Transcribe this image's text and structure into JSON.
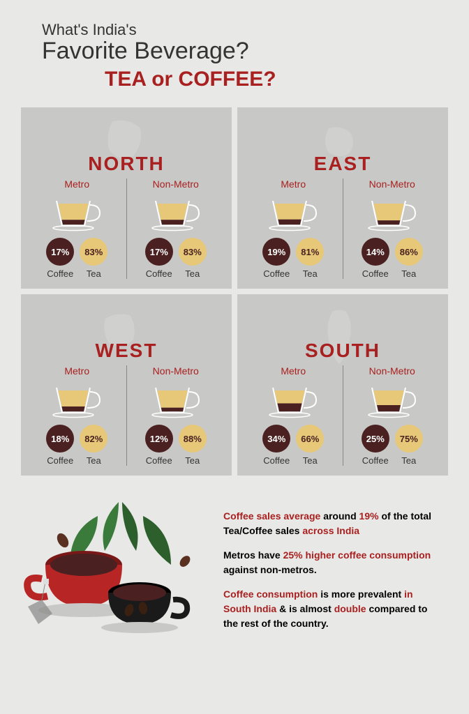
{
  "header": {
    "line1": "What's India's",
    "line2": "Favorite Beverage?",
    "line3": "TEA or COFFEE?"
  },
  "regions": [
    {
      "name": "NORTH",
      "cols": [
        {
          "label": "Metro",
          "coffee": "17%",
          "tea": "83%",
          "coffee_fill": 0.17
        },
        {
          "label": "Non-Metro",
          "coffee": "17%",
          "tea": "83%",
          "coffee_fill": 0.17
        }
      ]
    },
    {
      "name": "EAST",
      "cols": [
        {
          "label": "Metro",
          "coffee": "19%",
          "tea": "81%",
          "coffee_fill": 0.19
        },
        {
          "label": "Non-Metro",
          "coffee": "14%",
          "tea": "86%",
          "coffee_fill": 0.14
        }
      ]
    },
    {
      "name": "WEST",
      "cols": [
        {
          "label": "Metro",
          "coffee": "18%",
          "tea": "82%",
          "coffee_fill": 0.18
        },
        {
          "label": "Non-Metro",
          "coffee": "12%",
          "tea": "88%",
          "coffee_fill": 0.12
        }
      ]
    },
    {
      "name": "SOUTH",
      "cols": [
        {
          "label": "Metro",
          "coffee": "34%",
          "tea": "66%",
          "coffee_fill": 0.34
        },
        {
          "label": "Non-Metro",
          "coffee": "25%",
          "tea": "75%",
          "coffee_fill": 0.25
        }
      ]
    }
  ],
  "labels": {
    "coffee": "Coffee",
    "tea": "Tea"
  },
  "colors": {
    "coffee": "#4a2020",
    "tea": "#e6c878",
    "accent": "#a8201f",
    "panel_bg": "#c8c8c6",
    "page_bg": "#e8e8e6"
  },
  "footer": {
    "p1_a": "Coffee sales average",
    "p1_b": " around ",
    "p1_c": "19%",
    "p1_d": " of the total Tea/Coffee sales ",
    "p1_e": "across India",
    "p2_a": "Metros have ",
    "p2_b": "25% higher coffee consumption",
    "p2_c": " against non-metros.",
    "p3_a": "Coffee consumption",
    "p3_b": " is more prevalent ",
    "p3_c": "in South India",
    "p3_d": " & is almost ",
    "p3_e": "double",
    "p3_f": " compared to the rest of the country."
  }
}
